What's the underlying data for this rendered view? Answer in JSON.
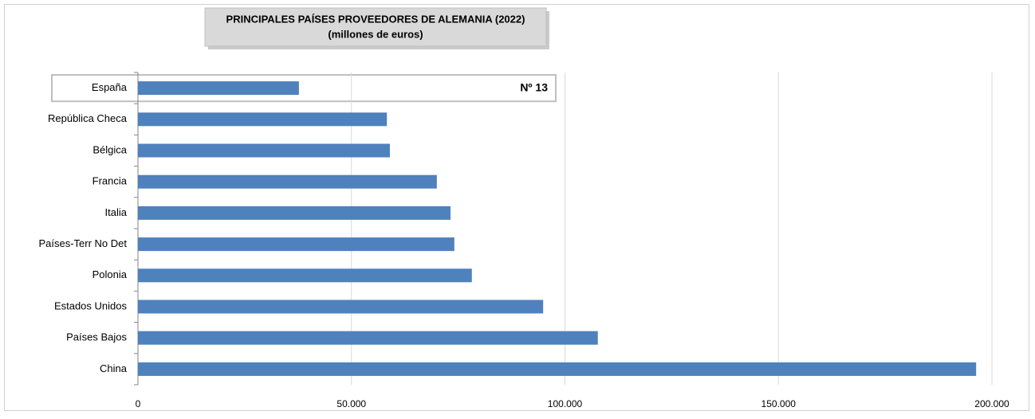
{
  "chart_data": {
    "type": "hbar",
    "title": "PRINCIPALES PAÍSES PROVEEDORES DE ALEMANIA (2022)",
    "subtitle": "(millones de euros)",
    "annotation": "Nº 13",
    "categories": [
      "España",
      "República Checa",
      "Bélgica",
      "Francia",
      "Italia",
      "Países-Terr No Det",
      "Polonia",
      "Estados Unidos",
      "Países Bajos",
      "China"
    ],
    "values": [
      37700,
      58300,
      59000,
      70000,
      73200,
      74100,
      78200,
      94900,
      107700,
      196300
    ],
    "color": "#4f81bd",
    "xlim": [
      0,
      200000
    ],
    "xticks": [
      0,
      {
        "value": 50000,
        "label": "50.000"
      },
      {
        "value": 100000,
        "label": "100.000"
      },
      {
        "value": 150000,
        "label": "150.000"
      },
      {
        "value": 200000,
        "label": "200.000"
      }
    ],
    "grid": true
  }
}
